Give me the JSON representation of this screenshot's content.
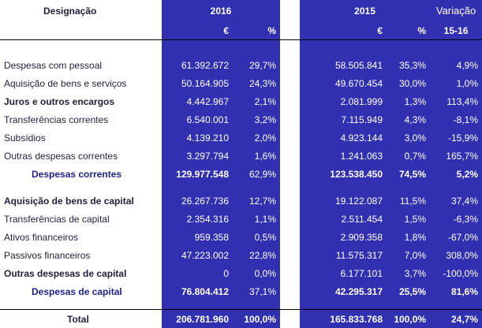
{
  "header": {
    "designacao": "Designação",
    "year_2016": "2016",
    "year_2015": "2015",
    "variacao": "Variação",
    "euro_symbol": "€",
    "pct_symbol": "%",
    "var_period": "15-16"
  },
  "rows_current": [
    {
      "label": "Despesas com pessoal",
      "v2016": "61.392.672",
      "p2016": "29,7%",
      "v2015": "58.505.841",
      "p2015": "35,3%",
      "var": "4,9%",
      "bold": false
    },
    {
      "label": "Aquisição de bens e serviços",
      "v2016": "50.164.905",
      "p2016": "24,3%",
      "v2015": "49.670.454",
      "p2015": "30,0%",
      "var": "1,0%",
      "bold": false
    },
    {
      "label": "Juros e outros encargos",
      "v2016": "4.442.967",
      "p2016": "2,1%",
      "v2015": "2.081.999",
      "p2015": "1,3%",
      "var": "113,4%",
      "bold": true
    },
    {
      "label": "Transferências correntes",
      "v2016": "6.540.001",
      "p2016": "3,2%",
      "v2015": "7.115.949",
      "p2015": "4,3%",
      "var": "-8,1%",
      "bold": false
    },
    {
      "label": "Subsídios",
      "v2016": "4.139.210",
      "p2016": "2,0%",
      "v2015": "4.923.144",
      "p2015": "3,0%",
      "var": "-15,9%",
      "bold": false
    },
    {
      "label": "Outras despesas correntes",
      "v2016": "3.297.794",
      "p2016": "1,6%",
      "v2015": "1.241.063",
      "p2015": "0,7%",
      "var": "165,7%",
      "bold": false
    }
  ],
  "subtotal_current": {
    "label": "Despesas correntes",
    "v2016": "129.977.548",
    "p2016": "62,9%",
    "v2015": "123.538.450",
    "p2015": "74,5%",
    "var": "5,2%"
  },
  "rows_capital": [
    {
      "label": "Aquisição de bens de capital",
      "v2016": "26.267.736",
      "p2016": "12,7%",
      "v2015": "19.122.087",
      "p2015": "11,5%",
      "var": "37,4%",
      "bold": true
    },
    {
      "label": "Transferências de capital",
      "v2016": "2.354.316",
      "p2016": "1,1%",
      "v2015": "2.511.454",
      "p2015": "1,5%",
      "var": "-6,3%",
      "bold": false
    },
    {
      "label": "Ativos financeiros",
      "v2016": "959.358",
      "p2016": "0,5%",
      "v2015": "2.909.358",
      "p2015": "1,8%",
      "var": "-67,0%",
      "bold": false
    },
    {
      "label": "Passivos financeiros",
      "v2016": "47.223.002",
      "p2016": "22,8%",
      "v2015": "11.575.317",
      "p2015": "7,0%",
      "var": "308,0%",
      "bold": false
    },
    {
      "label": "Outras despesas de capital",
      "v2016": "0",
      "p2016": "0,0%",
      "v2015": "6.177.101",
      "p2015": "3,7%",
      "var": "-100,0%",
      "bold": true
    }
  ],
  "subtotal_capital": {
    "label": "Despesas de capital",
    "v2016": "76.804.412",
    "p2016": "37,1%",
    "v2015": "42.295.317",
    "p2015": "25,5%",
    "var": "81,6%"
  },
  "total": {
    "label": "Total",
    "v2016": "206.781.960",
    "p2016": "100,0%",
    "v2015": "165.833.768",
    "p2015": "100,0%",
    "var": "24,7%"
  },
  "colors": {
    "accent_blue": "#3030b0",
    "text_dark": "#1f1f3d"
  }
}
